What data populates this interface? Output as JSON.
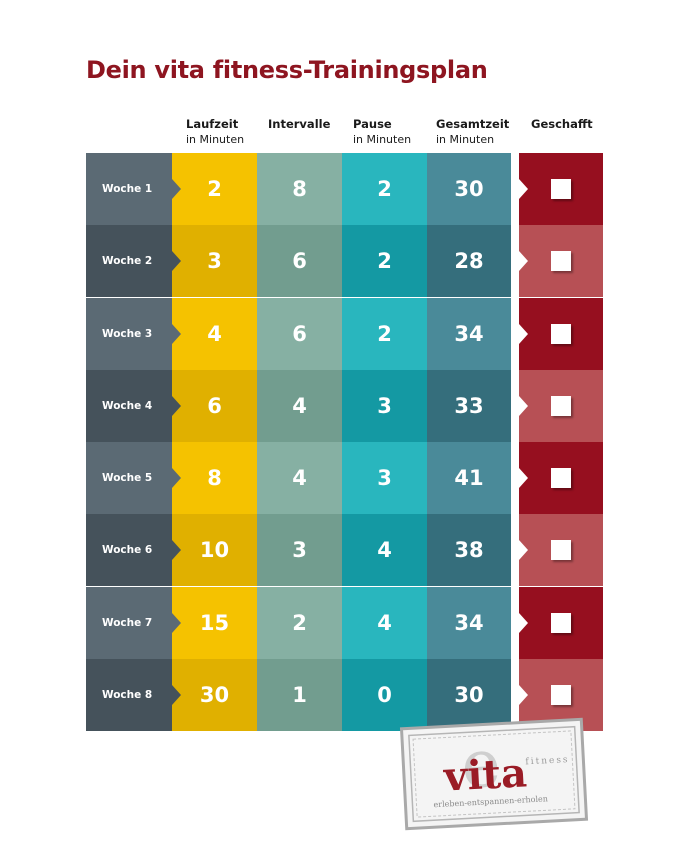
{
  "title": "Dein vita fitness-Trainingsplan",
  "headers": {
    "run": {
      "title": "Laufzeit",
      "sub": "in Minuten"
    },
    "intervals": {
      "title": "Intervalle",
      "sub": ""
    },
    "pause": {
      "title": "Pause",
      "sub": "in Minuten"
    },
    "total": {
      "title": "Gesamtzeit",
      "sub": "in Minuten"
    },
    "done": {
      "title": "Geschafft",
      "sub": ""
    }
  },
  "rows": [
    {
      "week": "Woche 1",
      "run": "2",
      "intervals": "8",
      "pause": "2",
      "total": "30"
    },
    {
      "week": "Woche 2",
      "run": "3",
      "intervals": "6",
      "pause": "2",
      "total": "28"
    },
    {
      "week": "Woche 3",
      "run": "4",
      "intervals": "6",
      "pause": "2",
      "total": "34"
    },
    {
      "week": "Woche 4",
      "run": "6",
      "intervals": "4",
      "pause": "3",
      "total": "33"
    },
    {
      "week": "Woche 5",
      "run": "8",
      "intervals": "4",
      "pause": "3",
      "total": "41"
    },
    {
      "week": "Woche 6",
      "run": "10",
      "intervals": "3",
      "pause": "4",
      "total": "38"
    },
    {
      "week": "Woche 7",
      "run": "15",
      "intervals": "2",
      "pause": "4",
      "total": "34"
    },
    {
      "week": "Woche 8",
      "run": "30",
      "intervals": "1",
      "pause": "0",
      "total": "30"
    }
  ],
  "stamp": {
    "brand": "vita",
    "suffix": "fitness",
    "tagline": "erleben-entspannen-erholen"
  },
  "colors": {
    "title": "#8e1520",
    "week_light": "#5b6a74",
    "week_dark": "#45525b",
    "run_light": "#f5c200",
    "run_dark": "#e0b000",
    "int_light": "#86b0a3",
    "int_dark": "#729d8f",
    "pau_light": "#29b6be",
    "pau_dark": "#1499a3",
    "tot_light": "#4a8a99",
    "tot_dark": "#356e7c",
    "done_dark": "#960f1f",
    "done_light": "#b75055"
  }
}
